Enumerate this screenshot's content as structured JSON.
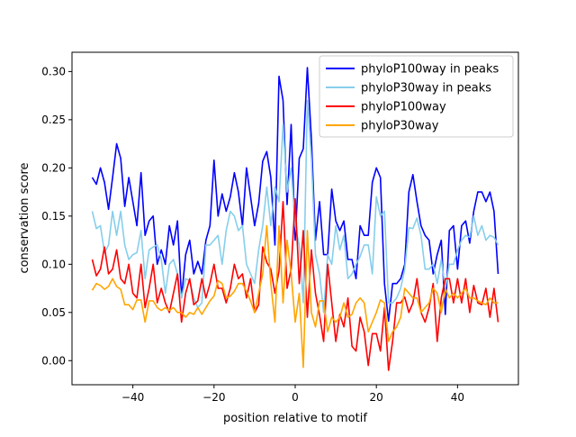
{
  "chart_data": {
    "type": "line",
    "title": "",
    "xlabel": "position relative to motif",
    "ylabel": "conservation score",
    "xlim": [
      -55,
      55
    ],
    "ylim": [
      -0.025,
      0.32
    ],
    "x_start": -50,
    "x_step": 1,
    "x_ticks": [
      -40,
      -20,
      0,
      20,
      40
    ],
    "x_tick_labels": [
      "−40",
      "−20",
      "0",
      "20",
      "40"
    ],
    "y_ticks": [
      0.0,
      0.05,
      0.1,
      0.15,
      0.2,
      0.25,
      0.3
    ],
    "y_tick_labels": [
      "0.00",
      "0.05",
      "0.10",
      "0.15",
      "0.20",
      "0.25",
      "0.30"
    ],
    "grid": false,
    "legend_position": "top-right",
    "series": [
      {
        "name": "phyloP100way in peaks",
        "color": "#0000ff",
        "values": [
          0.19,
          0.183,
          0.2,
          0.185,
          0.157,
          0.19,
          0.225,
          0.21,
          0.16,
          0.19,
          0.165,
          0.14,
          0.195,
          0.13,
          0.145,
          0.15,
          0.1,
          0.115,
          0.1,
          0.14,
          0.12,
          0.145,
          0.065,
          0.11,
          0.125,
          0.09,
          0.103,
          0.09,
          0.125,
          0.14,
          0.208,
          0.15,
          0.173,
          0.155,
          0.17,
          0.195,
          0.175,
          0.14,
          0.2,
          0.17,
          0.14,
          0.163,
          0.207,
          0.217,
          0.19,
          0.12,
          0.295,
          0.27,
          0.162,
          0.245,
          0.125,
          0.21,
          0.22,
          0.304,
          0.23,
          0.125,
          0.165,
          0.11,
          0.11,
          0.178,
          0.145,
          0.135,
          0.145,
          0.105,
          0.105,
          0.085,
          0.14,
          0.13,
          0.13,
          0.185,
          0.2,
          0.19,
          0.08,
          0.041,
          0.08,
          0.08,
          0.085,
          0.1,
          0.175,
          0.193,
          0.165,
          0.14,
          0.13,
          0.125,
          0.09,
          0.11,
          0.125,
          0.048,
          0.135,
          0.14,
          0.095,
          0.14,
          0.145,
          0.122,
          0.155,
          0.175,
          0.175,
          0.165,
          0.175,
          0.155,
          0.09
        ]
      },
      {
        "name": "phyloP30way in peaks",
        "color": "#87ceeb",
        "values": [
          0.155,
          0.137,
          0.14,
          0.112,
          0.12,
          0.155,
          0.13,
          0.155,
          0.12,
          0.105,
          0.11,
          0.112,
          0.135,
          0.085,
          0.115,
          0.118,
          0.12,
          0.105,
          0.07,
          0.1,
          0.105,
          0.09,
          0.065,
          0.085,
          0.083,
          0.065,
          0.055,
          0.06,
          0.12,
          0.12,
          0.125,
          0.13,
          0.1,
          0.135,
          0.155,
          0.15,
          0.135,
          0.14,
          0.1,
          0.09,
          0.08,
          0.115,
          0.14,
          0.18,
          0.14,
          0.18,
          0.165,
          0.245,
          0.175,
          0.2,
          0.14,
          0.12,
          0.06,
          0.27,
          0.21,
          0.11,
          0.09,
          0.05,
          0.11,
          0.1,
          0.14,
          0.115,
          0.13,
          0.085,
          0.09,
          0.1,
          0.108,
          0.12,
          0.12,
          0.09,
          0.17,
          0.15,
          0.155,
          0.06,
          0.06,
          0.065,
          0.075,
          0.095,
          0.138,
          0.137,
          0.148,
          0.13,
          0.095,
          0.095,
          0.1,
          0.08,
          0.105,
          0.075,
          0.1,
          0.1,
          0.115,
          0.125,
          0.13,
          0.128,
          0.15,
          0.13,
          0.14,
          0.125,
          0.13,
          0.128,
          0.12
        ]
      },
      {
        "name": "phyloP100way",
        "color": "#ff0000",
        "values": [
          0.105,
          0.088,
          0.095,
          0.118,
          0.09,
          0.095,
          0.115,
          0.085,
          0.08,
          0.1,
          0.07,
          0.065,
          0.1,
          0.055,
          0.075,
          0.1,
          0.06,
          0.075,
          0.06,
          0.05,
          0.07,
          0.09,
          0.04,
          0.07,
          0.085,
          0.058,
          0.062,
          0.085,
          0.065,
          0.08,
          0.1,
          0.075,
          0.075,
          0.06,
          0.075,
          0.1,
          0.085,
          0.09,
          0.065,
          0.085,
          0.05,
          0.058,
          0.118,
          0.102,
          0.095,
          0.07,
          0.093,
          0.165,
          0.075,
          0.095,
          0.168,
          0.08,
          0.135,
          0.045,
          0.115,
          0.07,
          0.047,
          0.02,
          0.1,
          0.06,
          0.02,
          0.048,
          0.035,
          0.065,
          0.015,
          0.01,
          0.045,
          0.03,
          -0.005,
          0.028,
          0.028,
          0.01,
          0.055,
          -0.01,
          0.02,
          0.06,
          0.06,
          0.066,
          0.05,
          0.06,
          0.085,
          0.05,
          0.04,
          0.055,
          0.08,
          0.02,
          0.065,
          0.085,
          0.085,
          0.06,
          0.085,
          0.06,
          0.085,
          0.05,
          0.078,
          0.06,
          0.058,
          0.075,
          0.045,
          0.075,
          0.04
        ]
      },
      {
        "name": "phyloP30way",
        "color": "#ffa500",
        "values": [
          0.073,
          0.08,
          0.078,
          0.074,
          0.077,
          0.085,
          0.077,
          0.074,
          0.058,
          0.058,
          0.053,
          0.063,
          0.063,
          0.04,
          0.062,
          0.062,
          0.055,
          0.052,
          0.055,
          0.052,
          0.055,
          0.05,
          0.05,
          0.045,
          0.05,
          0.048,
          0.055,
          0.048,
          0.055,
          0.062,
          0.067,
          0.083,
          0.08,
          0.065,
          0.067,
          0.072,
          0.08,
          0.08,
          0.072,
          0.062,
          0.05,
          0.07,
          0.09,
          0.14,
          0.08,
          0.04,
          0.14,
          0.06,
          0.125,
          0.09,
          0.04,
          0.07,
          -0.007,
          0.135,
          0.05,
          0.035,
          0.062,
          0.062,
          0.03,
          0.045,
          0.04,
          0.045,
          0.06,
          0.045,
          0.048,
          0.06,
          0.065,
          0.06,
          0.03,
          0.04,
          0.05,
          0.063,
          0.06,
          0.02,
          0.03,
          0.035,
          0.045,
          0.075,
          0.07,
          0.065,
          0.065,
          0.05,
          0.055,
          0.06,
          0.075,
          0.07,
          0.05,
          0.075,
          0.065,
          0.07,
          0.065,
          0.07,
          0.075,
          0.065,
          0.065,
          0.062,
          0.06,
          0.058,
          0.065,
          0.06,
          0.06
        ]
      }
    ]
  }
}
